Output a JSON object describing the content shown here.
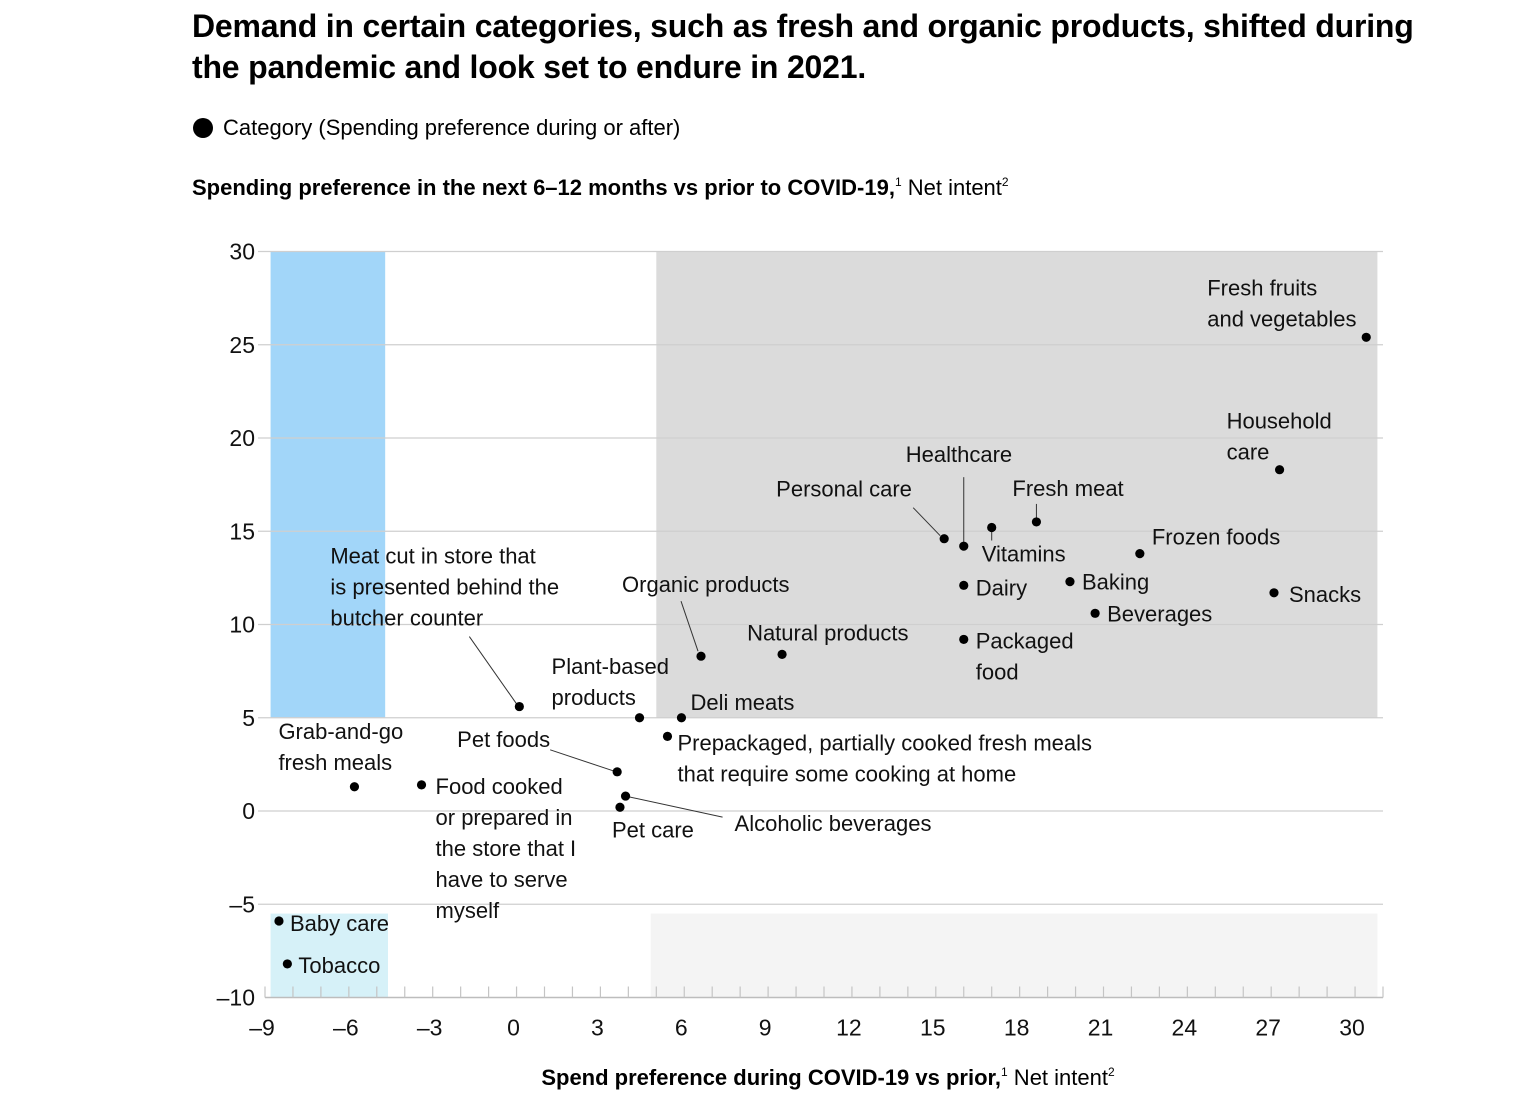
{
  "header": {
    "title": "Demand in certain categories, such as fresh and organic products, shifted during the pandemic and look set to endure in 2021.",
    "legend_label": "Category (Spending preference during or after)"
  },
  "chart_data": {
    "type": "scatter",
    "title": "Demand in certain categories, such as fresh and organic products, shifted during the pandemic and look set to endure in 2021.",
    "ylabel_bold": "Spending preference in the next 6–12 months vs prior to COVID-19,",
    "ylabel_sup1": "1",
    "ylabel_rest": " Net intent",
    "ylabel_sup2": "2",
    "xlabel_bold": "Spend preference during COVID-19 vs prior,",
    "xlabel_sup1": "1",
    "xlabel_rest": " Net intent",
    "xlabel_sup2": "2",
    "xlim": [
      -9,
      31
    ],
    "ylim": [
      -10,
      30
    ],
    "x_ticks": [
      "–9",
      "–6",
      "–3",
      "0",
      "3",
      "6",
      "9",
      "12",
      "15",
      "18",
      "21",
      "24",
      "27",
      "30"
    ],
    "x_tick_values": [
      -9,
      -6,
      -3,
      0,
      3,
      6,
      9,
      12,
      15,
      18,
      21,
      24,
      27,
      30
    ],
    "y_ticks": [
      "30",
      "25",
      "20",
      "15",
      "10",
      "5",
      "0",
      "–5",
      "–10"
    ],
    "y_tick_values": [
      30,
      25,
      20,
      15,
      10,
      5,
      0,
      -5,
      -10
    ],
    "grid": "horizontal",
    "legend_position": "top-left",
    "regions": [
      {
        "name": "negative-during-positive-after",
        "x": [
          -8.8,
          -4.7
        ],
        "y": [
          5,
          30
        ],
        "color": "#a2d6f9"
      },
      {
        "name": "positive-during-positive-after",
        "x": [
          5.0,
          30.8
        ],
        "y": [
          5,
          30
        ],
        "color": "#dbdbdb"
      },
      {
        "name": "negative-during-negative-after",
        "x": [
          -8.8,
          -4.6
        ],
        "y": [
          -10,
          -5.5
        ],
        "color": "#d6f1f8"
      },
      {
        "name": "positive-during-negative-after",
        "x": [
          4.8,
          30.8
        ],
        "y": [
          -10,
          -5.5
        ],
        "color": "#f4f4f4"
      }
    ],
    "points": [
      {
        "label": "Fresh fruits and vegetables",
        "lines": [
          "Fresh fruits",
          "and vegetables"
        ],
        "x": 30.4,
        "y": 25.4
      },
      {
        "label": "Household care",
        "lines": [
          "Household",
          "care"
        ],
        "x": 27.3,
        "y": 18.3
      },
      {
        "label": "Snacks",
        "lines": [
          "Snacks"
        ],
        "x": 27.1,
        "y": 11.7
      },
      {
        "label": "Frozen foods",
        "lines": [
          "Frozen foods"
        ],
        "x": 22.3,
        "y": 13.8
      },
      {
        "label": "Beverages",
        "lines": [
          "Beverages"
        ],
        "x": 20.7,
        "y": 10.6
      },
      {
        "label": "Baking",
        "lines": [
          "Baking"
        ],
        "x": 19.8,
        "y": 12.3
      },
      {
        "label": "Fresh meat",
        "lines": [
          "Fresh meat"
        ],
        "x": 18.6,
        "y": 15.5
      },
      {
        "label": "Vitamins",
        "lines": [
          "Vitamins"
        ],
        "x": 17.0,
        "y": 15.2
      },
      {
        "label": "Healthcare",
        "lines": [
          "Healthcare"
        ],
        "x": 16.0,
        "y": 14.2
      },
      {
        "label": "Personal care",
        "lines": [
          "Personal care"
        ],
        "x": 15.3,
        "y": 14.6
      },
      {
        "label": "Dairy",
        "lines": [
          "Dairy"
        ],
        "x": 16.0,
        "y": 12.1
      },
      {
        "label": "Packaged food",
        "lines": [
          "Packaged",
          "food"
        ],
        "x": 16.0,
        "y": 9.2
      },
      {
        "label": "Natural products",
        "lines": [
          "Natural products"
        ],
        "x": 9.5,
        "y": 8.4
      },
      {
        "label": "Organic products",
        "lines": [
          "Organic products"
        ],
        "x": 6.6,
        "y": 8.3
      },
      {
        "label": "Deli meats",
        "lines": [
          "Deli meats"
        ],
        "x": 5.9,
        "y": 5.0
      },
      {
        "label": "Plant-based products",
        "lines": [
          "Plant-based",
          "products"
        ],
        "x": 4.4,
        "y": 5.0
      },
      {
        "label": "Prepackaged, partially cooked fresh meals that require some cooking at home",
        "lines": [
          "Prepackaged, partially cooked fresh meals",
          "that require some cooking at home"
        ],
        "x": 5.4,
        "y": 4.0
      },
      {
        "label": "Meat cut in store that is presented behind the butcher counter",
        "lines": [
          "Meat cut in store that",
          "is presented behind the",
          "butcher counter"
        ],
        "x": 0.1,
        "y": 5.6
      },
      {
        "label": "Pet foods",
        "lines": [
          "Pet foods"
        ],
        "x": 3.6,
        "y": 2.1
      },
      {
        "label": "Alcoholic beverages",
        "lines": [
          "Alcoholic beverages"
        ],
        "x": 3.9,
        "y": 0.8
      },
      {
        "label": "Pet care",
        "lines": [
          "Pet care"
        ],
        "x": 3.7,
        "y": 0.2
      },
      {
        "label": "Food cooked or prepared in the store that I have to serve myself",
        "lines": [
          "Food cooked",
          "or prepared in",
          "the store that I",
          "have to serve",
          "myself"
        ],
        "x": -3.4,
        "y": 1.4
      },
      {
        "label": "Grab-and-go fresh meals",
        "lines": [
          "Grab-and-go",
          "fresh meals"
        ],
        "x": -5.8,
        "y": 1.3
      },
      {
        "label": "Baby care",
        "lines": [
          "Baby care"
        ],
        "x": -8.5,
        "y": -5.9
      },
      {
        "label": "Tobacco",
        "lines": [
          "Tobacco"
        ],
        "x": -8.2,
        "y": -8.2
      }
    ]
  }
}
